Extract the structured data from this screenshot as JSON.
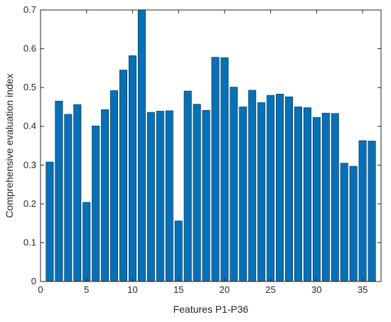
{
  "chart_data": {
    "type": "bar",
    "title": "",
    "xlabel": "Features P1-P36",
    "ylabel": "Comprehensive evaluation index",
    "xlim": [
      0,
      37
    ],
    "ylim": [
      0,
      0.7
    ],
    "x_ticks": [
      0,
      5,
      10,
      15,
      20,
      25,
      30,
      35
    ],
    "y_ticks": [
      0,
      0.1,
      0.2,
      0.3,
      0.4,
      0.5,
      0.6,
      0.7
    ],
    "grid": false,
    "legend": "none",
    "bar_color": "#0072BD",
    "x": [
      1,
      2,
      3,
      4,
      5,
      6,
      7,
      8,
      9,
      10,
      11,
      12,
      13,
      14,
      15,
      16,
      17,
      18,
      19,
      20,
      21,
      22,
      23,
      24,
      25,
      26,
      27,
      28,
      29,
      30,
      31,
      32,
      33,
      34,
      35,
      36
    ],
    "values": [
      0.308,
      0.465,
      0.431,
      0.456,
      0.204,
      0.401,
      0.443,
      0.492,
      0.545,
      0.582,
      0.7,
      0.436,
      0.439,
      0.44,
      0.156,
      0.491,
      0.457,
      0.441,
      0.578,
      0.577,
      0.501,
      0.45,
      0.493,
      0.461,
      0.48,
      0.483,
      0.476,
      0.45,
      0.448,
      0.423,
      0.434,
      0.433,
      0.305,
      0.297,
      0.363,
      0.362
    ]
  }
}
